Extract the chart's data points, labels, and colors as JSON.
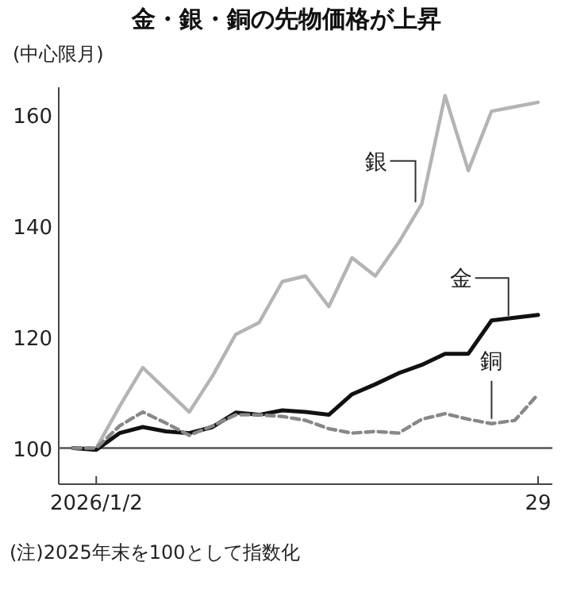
{
  "chart_data": {
    "type": "line",
    "title": "金・銀・銅の先物価格が上昇",
    "subtitle": "(中心限月)",
    "categories": [
      null,
      "2026/1/2",
      null,
      null,
      null,
      null,
      null,
      null,
      null,
      null,
      null,
      null,
      null,
      null,
      null,
      null,
      null,
      null,
      null,
      null,
      "29"
    ],
    "series": [
      {
        "name": "銀",
        "color": "#b4b4b4",
        "values": [
          100,
          100,
          107.5,
          114.5,
          110.5,
          106.5,
          113,
          120.5,
          122.6,
          130,
          131,
          125.5,
          134.3,
          131,
          137,
          144,
          163.5,
          150,
          160.7,
          161.5,
          162.3
        ]
      },
      {
        "name": "金",
        "color": "#111111",
        "values": [
          100,
          99.7,
          102.7,
          103.8,
          103,
          102.7,
          103.8,
          106.4,
          106,
          106.8,
          106.5,
          106,
          109.7,
          111.5,
          113.5,
          115,
          117,
          117,
          123,
          123.5,
          124
        ]
      },
      {
        "name": "銅",
        "color": "#888888",
        "line_style": "dashed",
        "values": [
          100,
          100,
          104,
          106.5,
          104.5,
          102.3,
          104,
          106,
          106,
          105.7,
          105,
          103.5,
          102.7,
          103,
          102.7,
          105.2,
          106.2,
          105.2,
          104.4,
          105,
          109.7
        ]
      }
    ],
    "ylim": [
      93.5,
      165
    ],
    "yticks": [
      100,
      120,
      140,
      160
    ],
    "grid": false,
    "marker": "none",
    "line_style": "solid",
    "ref_lines": [
      {
        "axis": "y",
        "value": 100,
        "color": "#555555"
      }
    ],
    "annotations": [
      "(注)2025年末を100として指数化"
    ]
  }
}
